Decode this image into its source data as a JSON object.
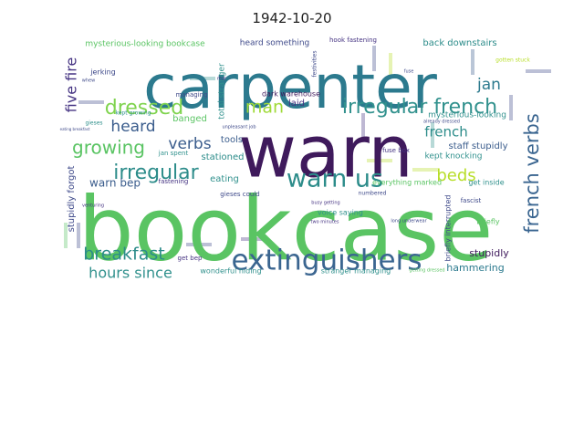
{
  "title": "1942-10-20",
  "words": [
    {
      "text": "bookcase",
      "color": "#5ac463"
    },
    {
      "text": "carpenter",
      "color": "#2c7a8e"
    },
    {
      "text": "warn",
      "color": "#3f1a5c"
    },
    {
      "text": "extinguishers",
      "color": "#3a6590"
    },
    {
      "text": "warn us",
      "color": "#2c8c8a"
    },
    {
      "text": "irregular french",
      "color": "#31918d"
    },
    {
      "text": "irregular",
      "color": "#2c8c8a"
    },
    {
      "text": "french verbs",
      "color": "#3a6590"
    },
    {
      "text": "dressed",
      "color": "#7fd34e"
    },
    {
      "text": "growing",
      "color": "#5ac463"
    },
    {
      "text": "breakfast",
      "color": "#2c8c8a"
    },
    {
      "text": "hours since",
      "color": "#31918d"
    },
    {
      "text": "five fire",
      "color": "#453382"
    },
    {
      "text": "man",
      "color": "#a0da39"
    },
    {
      "text": "heard",
      "color": "#3a5c8c"
    },
    {
      "text": "verbs",
      "color": "#3a5c8c"
    },
    {
      "text": "jan",
      "color": "#2c7a8e"
    },
    {
      "text": "french",
      "color": "#2c8c8a"
    },
    {
      "text": "beds",
      "color": "#b8de29"
    },
    {
      "text": "warn bep",
      "color": "#3a5c8c"
    },
    {
      "text": "stupidly",
      "color": "#3f1a5c"
    },
    {
      "text": "hammering",
      "color": "#2c7a8e"
    },
    {
      "text": "mysterious-looking bookcase",
      "color": "#5ac463"
    },
    {
      "text": "heard something",
      "color": "#3f4a8a"
    },
    {
      "text": "hook fastening",
      "color": "#453382"
    },
    {
      "text": "back downstairs",
      "color": "#2c8c8a"
    },
    {
      "text": "mysterious-looking",
      "color": "#31918d"
    },
    {
      "text": "staff stupidly",
      "color": "#3a5c8c"
    },
    {
      "text": "kept knocking",
      "color": "#31918d"
    },
    {
      "text": "stationed",
      "color": "#2c8c8a"
    },
    {
      "text": "tools",
      "color": "#3a5c8c"
    },
    {
      "text": "banged",
      "color": "#5ac463"
    },
    {
      "text": "eating",
      "color": "#31918d"
    },
    {
      "text": "laid",
      "color": "#453382"
    },
    {
      "text": "dark warehouse",
      "color": "#3f1a5c"
    },
    {
      "text": "total stranger",
      "color": "#31918d"
    },
    {
      "text": "managing",
      "color": "#3f4a8a"
    },
    {
      "text": "jerking",
      "color": "#3f4a8a"
    },
    {
      "text": "fastening",
      "color": "#453382"
    },
    {
      "text": "voice saying",
      "color": "#31918d"
    },
    {
      "text": "briefly",
      "color": "#5ac463"
    },
    {
      "text": "get inside",
      "color": "#31918d"
    },
    {
      "text": "fuse box",
      "color": "#453382"
    },
    {
      "text": "stupidly forgot",
      "color": "#3f4a8a"
    },
    {
      "text": "wonderful hiding",
      "color": "#31918d"
    },
    {
      "text": "stranger managing",
      "color": "#31918d"
    },
    {
      "text": "gieses could",
      "color": "#3f4a8a"
    },
    {
      "text": "everything marked",
      "color": "#5ac463"
    },
    {
      "text": "briefly interrupted",
      "color": "#3f4a8a"
    },
    {
      "text": "fascist",
      "color": "#3f4a8a"
    },
    {
      "text": "kept growing",
      "color": "#31918d"
    },
    {
      "text": "jan spent",
      "color": "#31918d"
    },
    {
      "text": "numbered",
      "color": "#3f4a8a"
    },
    {
      "text": "get bep",
      "color": "#453382"
    },
    {
      "text": "getting dressed",
      "color": "#5ac463"
    },
    {
      "text": "gieses",
      "color": "#31918d"
    },
    {
      "text": "festivities",
      "color": "#3f4a8a"
    },
    {
      "text": "rear",
      "color": "#453382"
    },
    {
      "text": "whew",
      "color": "#3f4a8a"
    },
    {
      "text": "already dressed",
      "color": "#3f4a8a"
    },
    {
      "text": "gotten stuck",
      "color": "#b8de29"
    },
    {
      "text": "eating breakfast",
      "color": "#3f4a8a"
    },
    {
      "text": "fuse",
      "color": "#3f4a8a"
    },
    {
      "text": "busy getting",
      "color": "#453382"
    },
    {
      "text": "long underwear",
      "color": "#3f4a8a"
    },
    {
      "text": "two minutes",
      "color": "#453382"
    },
    {
      "text": "venturing",
      "color": "#453382"
    },
    {
      "text": "unpleasant job",
      "color": "#3f4a8a"
    }
  ]
}
